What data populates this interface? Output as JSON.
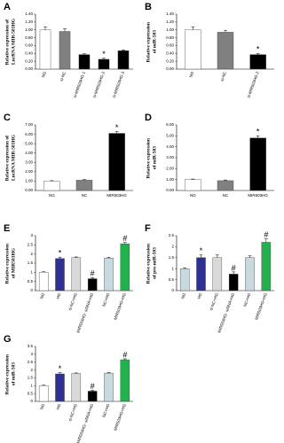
{
  "chart_data": [
    {
      "type": "bar",
      "label": "A",
      "y_label": "Relative expression of LncRNA MIR-503HG",
      "categories": [
        "NG",
        "si-NC",
        "si-MIR503HG-1",
        "si-MIR503HG-2",
        "si-MIR503HG-3"
      ],
      "values": [
        1.0,
        0.96,
        0.37,
        0.25,
        0.47
      ],
      "errors": [
        0.07,
        0.07,
        0.02,
        0.03,
        0.02
      ],
      "colors": [
        "#ffffff",
        "#808080",
        "#000000",
        "#000000",
        "#000000"
      ],
      "markers": [
        null,
        null,
        null,
        "*",
        null
      ],
      "ylim": [
        0,
        1.4
      ],
      "yticks": [
        {
          "value": 0,
          "label": "0.00"
        },
        {
          "value": 0.2,
          "label": "0.20"
        },
        {
          "value": 0.4,
          "label": "0.40"
        },
        {
          "value": 0.6,
          "label": "0.60"
        },
        {
          "value": 0.8,
          "label": "0.80"
        },
        {
          "value": 1.0,
          "label": "1.00"
        },
        {
          "value": 1.2,
          "label": "1.20"
        },
        {
          "value": 1.4,
          "label": "1.40"
        }
      ]
    },
    {
      "type": "bar",
      "label": "B",
      "y_label": "Relative expression of miR-503",
      "categories": [
        "NG",
        "si-NC",
        "si-MIR503HG-2"
      ],
      "values": [
        1.0,
        0.94,
        0.37
      ],
      "errors": [
        0.08,
        0.05,
        0.03
      ],
      "colors": [
        "#ffffff",
        "#808080",
        "#000000"
      ],
      "markers": [
        null,
        null,
        "*"
      ],
      "ylim": [
        0,
        1.4
      ],
      "yticks": [
        {
          "value": 0,
          "label": "0.00"
        },
        {
          "value": 0.2,
          "label": "0.20"
        },
        {
          "value": 0.4,
          "label": "0.40"
        },
        {
          "value": 0.6,
          "label": "0.60"
        },
        {
          "value": 0.8,
          "label": "0.80"
        },
        {
          "value": 1.0,
          "label": "1.00"
        },
        {
          "value": 1.2,
          "label": "1.20"
        },
        {
          "value": 1.4,
          "label": "1.40"
        }
      ]
    },
    {
      "type": "bar",
      "label": "C",
      "y_label": "Relative expression of LncRNA MIR-503HG",
      "categories": [
        "NG",
        "NC",
        "MIR503HG"
      ],
      "values": [
        1.0,
        1.1,
        6.1
      ],
      "errors": [
        0.05,
        0.06,
        0.2
      ],
      "colors": [
        "#ffffff",
        "#808080",
        "#000000"
      ],
      "markers": [
        null,
        null,
        "*"
      ],
      "ylim": [
        0,
        7
      ],
      "yticks": [
        {
          "value": 0,
          "label": "0.00"
        },
        {
          "value": 1,
          "label": "1.00"
        },
        {
          "value": 2,
          "label": "2.00"
        },
        {
          "value": 3,
          "label": "3.00"
        },
        {
          "value": 4,
          "label": "4.00"
        },
        {
          "value": 5,
          "label": "5.00"
        },
        {
          "value": 6,
          "label": "6.00"
        },
        {
          "value": 7,
          "label": "7.00"
        }
      ]
    },
    {
      "type": "bar",
      "label": "D",
      "y_label": "Relative expression of miR-503",
      "categories": [
        "NG",
        "NC",
        "MIR503HG"
      ],
      "values": [
        1.0,
        0.9,
        4.8
      ],
      "errors": [
        0.05,
        0.06,
        0.2
      ],
      "colors": [
        "#ffffff",
        "#808080",
        "#000000"
      ],
      "markers": [
        null,
        null,
        "*"
      ],
      "ylim": [
        0,
        6
      ],
      "yticks": [
        {
          "value": 0,
          "label": "0.00"
        },
        {
          "value": 1,
          "label": "1.00"
        },
        {
          "value": 2,
          "label": "2.00"
        },
        {
          "value": 3,
          "label": "3.00"
        },
        {
          "value": 4,
          "label": "4.00"
        },
        {
          "value": 5,
          "label": "5.00"
        },
        {
          "value": 6,
          "label": "6.00"
        }
      ]
    },
    {
      "type": "bar",
      "label": "E",
      "y_label": "Relative expression of MIR503HG",
      "categories": [
        "NG",
        "HG",
        "si-NC+HG",
        "MIR503HG- siRNA+HG",
        "NC+HG",
        "MIR503HG+HG"
      ],
      "values": [
        1.0,
        1.75,
        1.8,
        0.65,
        1.78,
        2.55
      ],
      "errors": [
        0.03,
        0.08,
        0.04,
        0.06,
        0.04,
        0.08
      ],
      "colors": [
        "#ffffff",
        "#2e3192",
        "#d9d9d9",
        "#000000",
        "#c8dadf",
        "#22b14c"
      ],
      "markers": [
        null,
        "*",
        null,
        "#",
        null,
        "#"
      ],
      "ylim": [
        0,
        3
      ],
      "yticks": [
        0,
        0.5,
        1,
        1.5,
        2,
        2.5,
        3
      ]
    },
    {
      "type": "bar",
      "label": "F",
      "y_label": "Relative expression of pre-miR-503",
      "categories": [
        "NG",
        "HG",
        "si-NC+HG",
        "MIR503HG- siRNA+HG",
        "NC+HG",
        "MIR503HG+HG"
      ],
      "values": [
        1.0,
        1.5,
        1.5,
        0.75,
        1.5,
        2.2
      ],
      "errors": [
        0.04,
        0.12,
        0.12,
        0.1,
        0.08,
        0.15
      ],
      "colors": [
        "#c8dadf",
        "#2e3192",
        "#d9d9d9",
        "#000000",
        "#c8dadf",
        "#22b14c"
      ],
      "markers": [
        null,
        "*",
        null,
        "#",
        null,
        "#"
      ],
      "ylim": [
        0,
        2.5
      ],
      "yticks": [
        0,
        0.5,
        1,
        1.5,
        2,
        2.5
      ]
    },
    {
      "type": "bar",
      "label": "G",
      "y_label": "Relative expression of miR-503",
      "categories": [
        "NG",
        "HG",
        "si-NC+HG",
        "MIR503HG- siRNA+HG",
        "NC+HG",
        "MIR503HG+HG"
      ],
      "values": [
        1.0,
        1.75,
        1.78,
        0.65,
        1.8,
        2.65
      ],
      "errors": [
        0.03,
        0.08,
        0.03,
        0.06,
        0.04,
        0.06
      ],
      "colors": [
        "#ffffff",
        "#2e3192",
        "#d9d9d9",
        "#000000",
        "#c8dadf",
        "#22b14c"
      ],
      "markers": [
        null,
        "*",
        null,
        "#",
        null,
        "#"
      ],
      "ylim": [
        0,
        3.5
      ],
      "yticks": [
        0,
        0.5,
        1,
        1.5,
        2,
        2.5,
        3,
        3.5
      ]
    }
  ]
}
